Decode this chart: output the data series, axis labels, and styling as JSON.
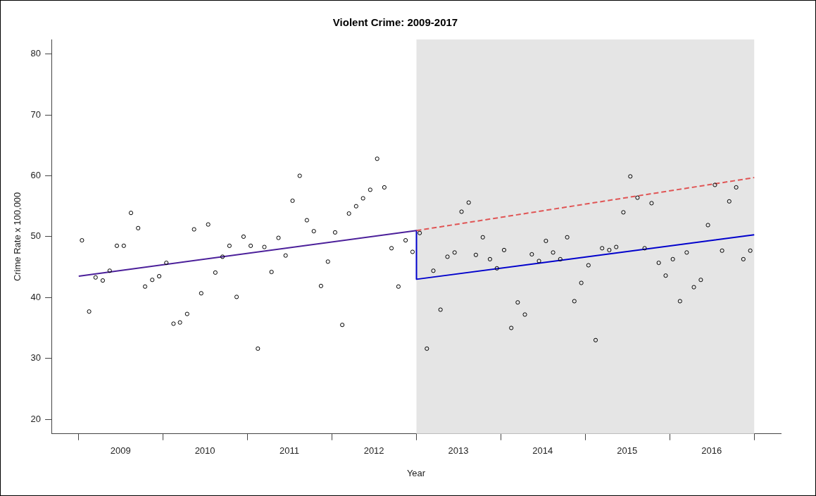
{
  "chart_data": {
    "type": "scatter",
    "title": "Violent Crime: 2009-2017",
    "xlabel": "Year",
    "ylabel": "Crime Rate x 100,000",
    "xlim": [
      "2008-09-05",
      "2017-04-26"
    ],
    "ylim": [
      17.6,
      82.4
    ],
    "xticks": [
      {
        "value": "2009-01-01",
        "label": null
      },
      {
        "value": "2009-07-01",
        "label": "2009"
      },
      {
        "value": "2010-01-01",
        "label": null
      },
      {
        "value": "2010-07-01",
        "label": "2010"
      },
      {
        "value": "2011-01-01",
        "label": null
      },
      {
        "value": "2011-07-01",
        "label": "2011"
      },
      {
        "value": "2012-01-01",
        "label": null
      },
      {
        "value": "2012-07-01",
        "label": "2012"
      },
      {
        "value": "2013-01-01",
        "label": null
      },
      {
        "value": "2013-07-01",
        "label": "2013"
      },
      {
        "value": "2014-01-01",
        "label": null
      },
      {
        "value": "2014-07-01",
        "label": "2014"
      },
      {
        "value": "2015-01-01",
        "label": null
      },
      {
        "value": "2015-07-01",
        "label": "2015"
      },
      {
        "value": "2016-01-01",
        "label": null
      },
      {
        "value": "2016-07-01",
        "label": "2016"
      },
      {
        "value": "2017-01-01",
        "label": null
      }
    ],
    "yticks": [
      20,
      30,
      40,
      50,
      60,
      70,
      80
    ],
    "grid": false,
    "bands": [
      {
        "axis": "x",
        "from": "2013-01-01",
        "to": "2017-01-01",
        "color": "#e5e5e5"
      }
    ],
    "series": [
      {
        "color": "#000000",
        "marker": "circle",
        "x": [
          "2009-01-15",
          "2009-02-15",
          "2009-03-15",
          "2009-04-15",
          "2009-05-15",
          "2009-06-15",
          "2009-07-15",
          "2009-08-15",
          "2009-09-15",
          "2009-10-15",
          "2009-11-15",
          "2009-12-15",
          "2010-01-15",
          "2010-02-15",
          "2010-03-15",
          "2010-04-15",
          "2010-05-15",
          "2010-06-15",
          "2010-07-15",
          "2010-08-15",
          "2010-09-15",
          "2010-10-15",
          "2010-11-15",
          "2010-12-15",
          "2011-01-15",
          "2011-02-15",
          "2011-03-15",
          "2011-04-15",
          "2011-05-15",
          "2011-06-15",
          "2011-07-15",
          "2011-08-15",
          "2011-09-15",
          "2011-10-15",
          "2011-11-15",
          "2011-12-15",
          "2012-01-15",
          "2012-02-15",
          "2012-03-15",
          "2012-04-15",
          "2012-05-15",
          "2012-06-15",
          "2012-07-15",
          "2012-08-15",
          "2012-09-15",
          "2012-10-15",
          "2012-11-15",
          "2012-12-15",
          "2013-01-15",
          "2013-02-15",
          "2013-03-15",
          "2013-04-15",
          "2013-05-15",
          "2013-06-15",
          "2013-07-15",
          "2013-08-15",
          "2013-09-15",
          "2013-10-15",
          "2013-11-15",
          "2013-12-15",
          "2014-01-15",
          "2014-02-15",
          "2014-03-15",
          "2014-04-15",
          "2014-05-15",
          "2014-06-15",
          "2014-07-15",
          "2014-08-15",
          "2014-09-15",
          "2014-10-15",
          "2014-11-15",
          "2014-12-15",
          "2015-01-15",
          "2015-02-15",
          "2015-03-15",
          "2015-04-15",
          "2015-05-15",
          "2015-06-15",
          "2015-07-15",
          "2015-08-15",
          "2015-09-15",
          "2015-10-15",
          "2015-11-15",
          "2015-12-15",
          "2016-01-15",
          "2016-02-15",
          "2016-03-15",
          "2016-04-15",
          "2016-05-15",
          "2016-06-15",
          "2016-07-15",
          "2016-08-15",
          "2016-09-15",
          "2016-10-15",
          "2016-11-15",
          "2016-12-15"
        ],
        "values": [
          49.4,
          37.7,
          43.3,
          42.8,
          44.4,
          48.5,
          48.5,
          53.9,
          51.4,
          41.8,
          42.9,
          43.5,
          45.7,
          35.7,
          35.9,
          37.3,
          51.2,
          40.7,
          52.0,
          44.1,
          46.7,
          48.5,
          40.1,
          50.0,
          48.5,
          31.6,
          48.3,
          44.2,
          49.8,
          46.9,
          55.9,
          60.0,
          52.7,
          50.9,
          41.9,
          45.9,
          50.7,
          35.5,
          53.8,
          55.0,
          56.3,
          57.7,
          62.8,
          58.1,
          48.1,
          41.8,
          49.4,
          47.5,
          50.6,
          31.6,
          44.4,
          38.0,
          46.7,
          47.4,
          54.1,
          55.6,
          47.0,
          49.9,
          46.3,
          44.8,
          47.8,
          35.0,
          39.2,
          37.2,
          47.1,
          46.0,
          49.3,
          47.4,
          46.3,
          49.9,
          39.4,
          42.4,
          45.3,
          33.0,
          48.1,
          47.8,
          48.3,
          54.0,
          59.9,
          56.4,
          48.1,
          55.5,
          45.7,
          43.6,
          46.3,
          39.4,
          47.4,
          41.7,
          42.9,
          51.9,
          58.5,
          47.7,
          55.8,
          58.1,
          46.3,
          47.7
        ]
      },
      {
        "type": "line",
        "color": "#e05555",
        "line_style": "dashed",
        "marker": "none",
        "x": [
          "2013-01-01",
          "2017-01-01"
        ],
        "values": [
          51.0,
          59.7
        ]
      },
      {
        "type": "line",
        "color": "#4b1f9a",
        "line_style": "solid",
        "marker": "none",
        "x": [
          "2009-01-01",
          "2013-01-01"
        ],
        "values": [
          43.5,
          51.0
        ]
      },
      {
        "type": "line",
        "color": "#0000cc",
        "line_style": "solid",
        "marker": "none",
        "x": [
          "2013-01-01",
          "2013-01-01",
          "2017-01-01"
        ],
        "values": [
          51.0,
          43.0,
          50.3
        ]
      }
    ]
  }
}
